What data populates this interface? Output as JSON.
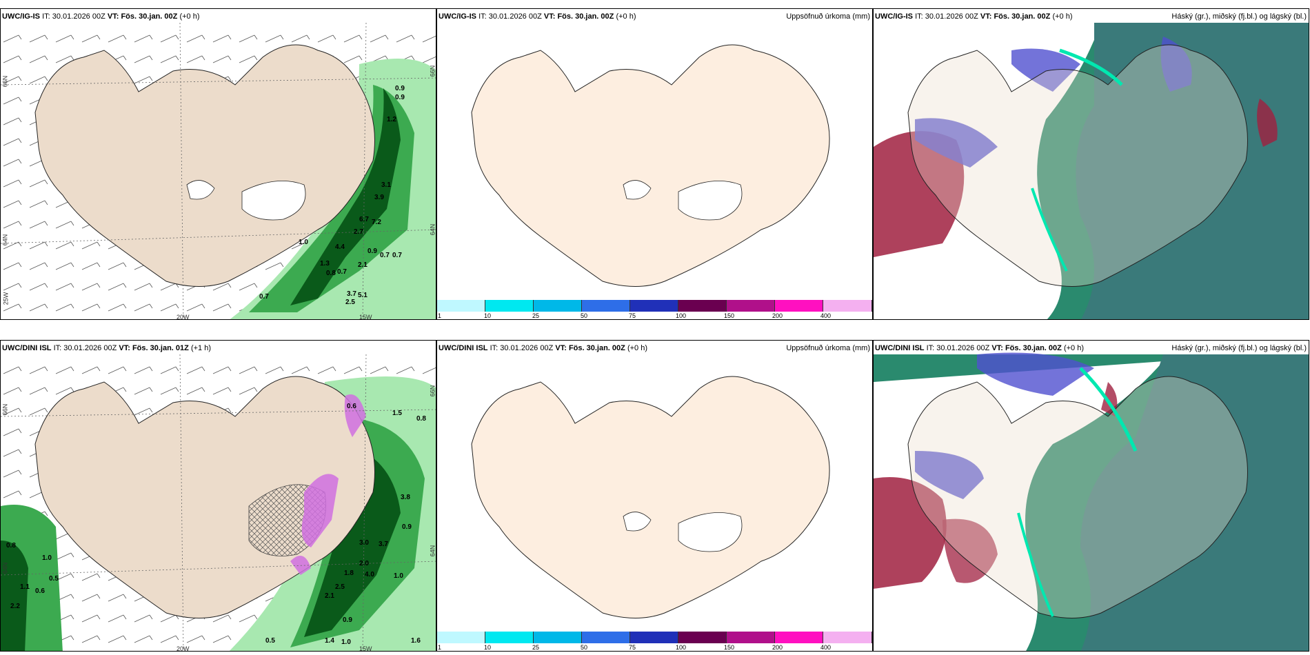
{
  "panels": [
    {
      "model": "UWC/IG-IS",
      "it_label": "IT:",
      "it_value": "30.01.2026 00Z",
      "vt_label": "VT:",
      "vt_value": "Fös. 30.jan. 00Z",
      "lead": "(+0 h)",
      "lat_lon_labels": {
        "lon1": "20W",
        "lon2": "15W",
        "lat1": "66N",
        "lat2": "64N",
        "lat3": "25W",
        "lat4": "66N",
        "lat5": "64N"
      },
      "precip_values": [
        "0.9",
        "0.9",
        "1.2",
        "3.1",
        "3.9",
        "6.7",
        "7.2",
        "2.7",
        "1.0",
        "4.4",
        "0.9",
        "0.7",
        "0.7",
        "1.3",
        "0.8",
        "0.7",
        "2.1",
        "3.7",
        "5.1",
        "0.7",
        "2.5"
      ]
    },
    {
      "model": "UWC/IG-IS",
      "it_label": "IT:",
      "it_value": "30.01.2026 00Z",
      "vt_label": "VT:",
      "vt_value": "Fös. 30.jan. 00Z",
      "lead": "(+0 h)",
      "title_right": "Uppsöfnuð úrkoma (mm)"
    },
    {
      "model": "UWC/IG-IS",
      "it_label": "IT:",
      "it_value": "30.01.2026 00Z",
      "vt_label": "VT:",
      "vt_value": "Fös. 30.jan. 00Z",
      "lead": "(+0 h)",
      "title_right": "Háský (gr.), miðský (fj.bl.) og lágský (bl.)"
    },
    {
      "model": "UWC/DINI ISL",
      "it_label": "IT:",
      "it_value": "30.01.2026 00Z",
      "vt_label": "VT:",
      "vt_value": "Fös. 30.jan. 01Z",
      "lead": "(+1 h)",
      "lat_lon_labels": {
        "lon1": "20W",
        "lon2": "15W",
        "lat1": "66N",
        "lat2": "64N",
        "lat3": "66N",
        "lat4": "64N"
      },
      "precip_values": [
        "0.6",
        "1.5",
        "0.8",
        "0.9",
        "3.8",
        "3.0",
        "3.7",
        "4.0",
        "1.8",
        "2.0",
        "2.5",
        "2.1",
        "1.0",
        "0.8",
        "1.0",
        "0.5",
        "0.6",
        "1.1",
        "2.2",
        "0.5",
        "0.9",
        "1.4",
        "1.0",
        "1.6"
      ]
    },
    {
      "model": "UWC/DINI ISL",
      "it_label": "IT:",
      "it_value": "30.01.2026 00Z",
      "vt_label": "VT:",
      "vt_value": "Fös. 30.jan. 00Z",
      "lead": "(+0 h)",
      "title_right": "Uppsöfnuð úrkoma (mm)"
    },
    {
      "model": "UWC/DINI ISL",
      "it_label": "IT:",
      "it_value": "30.01.2026 00Z",
      "vt_label": "VT:",
      "vt_value": "Fös. 30.jan. 00Z",
      "lead": "(+0 h)",
      "title_right": "Háský (gr.), miðský (fj.bl.) og lágský (bl.)"
    }
  ],
  "colorbar": {
    "ticks": [
      "1",
      "10",
      "25",
      "50",
      "75",
      "100",
      "150",
      "200",
      "400"
    ],
    "colors": [
      "#bff8ff",
      "#00e8f0",
      "#00b8e8",
      "#2e6ee8",
      "#2030b8",
      "#6a0050",
      "#b0108a",
      "#ff10c0",
      "#f4b0f0"
    ]
  },
  "colors": {
    "land": "#ecdccb",
    "land_plain": "#fdeee0",
    "precip_light": "#a8e8b0",
    "precip_mid": "#3caa50",
    "precip_dark": "#0a5a1a",
    "snow_pink": "#d070e0",
    "cloud_high": "#2a8a6e",
    "cloud_mid": "#5050d0",
    "cloud_low": "#a02040"
  }
}
